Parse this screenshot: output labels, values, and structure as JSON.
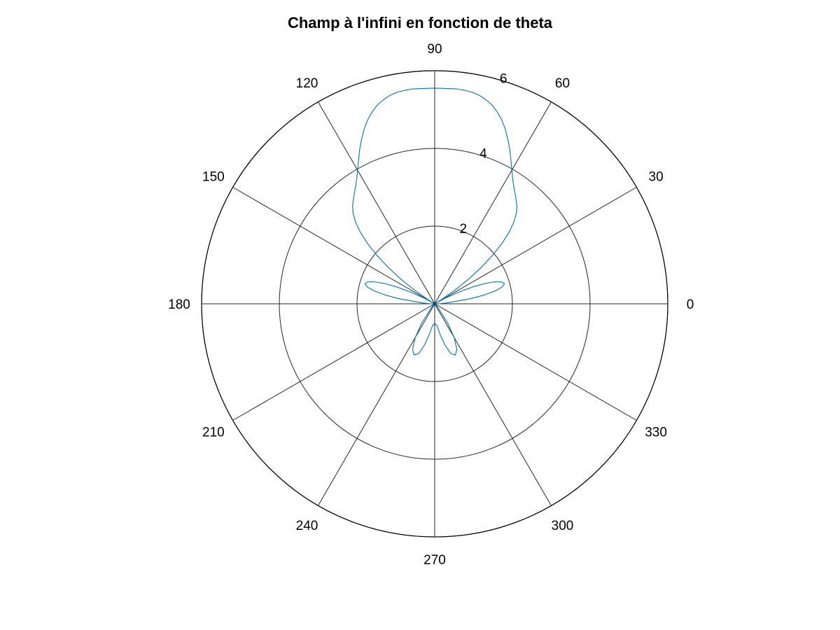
{
  "chart_data": {
    "type": "polar-line",
    "title": "Champ à l'infini en fonction de theta",
    "angle_unit": "degrees",
    "angle_ticks": [
      0,
      30,
      60,
      90,
      120,
      150,
      180,
      210,
      240,
      270,
      300,
      330
    ],
    "radial_ticks": [
      2,
      4,
      6
    ],
    "rlim": [
      0,
      6
    ],
    "grid": true,
    "series": [
      {
        "color": "#0072bd",
        "theta": [
          0,
          4,
          8,
          10,
          12,
          14,
          16,
          18,
          20,
          22,
          24,
          26,
          28,
          30,
          32,
          34,
          36,
          38,
          40,
          42,
          44,
          46,
          48,
          50,
          52,
          54,
          56,
          58,
          60,
          62,
          64,
          66,
          68,
          70,
          72,
          74,
          76,
          78,
          80,
          82,
          84,
          86,
          88,
          90,
          92,
          94,
          96,
          98,
          100,
          102,
          104,
          106,
          108,
          110,
          112,
          114,
          116,
          118,
          120,
          122,
          124,
          126,
          128,
          130,
          132,
          134,
          136,
          138,
          140,
          142,
          144,
          146,
          148,
          150,
          152,
          154,
          156,
          158,
          160,
          162,
          164,
          166,
          168,
          170,
          172,
          176,
          180,
          184,
          190,
          200,
          210,
          220,
          230,
          236,
          240,
          244,
          248,
          252,
          256,
          260,
          264,
          268,
          270,
          272,
          276,
          280,
          284,
          288,
          292,
          296,
          300,
          304,
          310,
          320,
          330,
          340,
          350,
          356,
          360
        ],
        "r": [
          0.1,
          0.3,
          0.9,
          1.28,
          1.59,
          1.79,
          1.87,
          1.82,
          1.66,
          1.4,
          1.06,
          0.68,
          0.32,
          0.05,
          0.18,
          0.61,
          1.06,
          1.52,
          1.95,
          2.34,
          2.67,
          2.94,
          3.14,
          3.29,
          3.4,
          3.52,
          3.64,
          3.79,
          3.97,
          4.18,
          4.41,
          4.63,
          4.85,
          5.04,
          5.2,
          5.33,
          5.42,
          5.49,
          5.53,
          5.55,
          5.56,
          5.55,
          5.55,
          5.55,
          5.55,
          5.55,
          5.56,
          5.55,
          5.53,
          5.49,
          5.42,
          5.33,
          5.2,
          5.04,
          4.85,
          4.63,
          4.41,
          4.18,
          3.97,
          3.79,
          3.64,
          3.52,
          3.4,
          3.29,
          3.14,
          2.94,
          2.67,
          2.34,
          1.95,
          1.52,
          1.06,
          0.61,
          0.18,
          0.05,
          0.32,
          0.68,
          1.06,
          1.4,
          1.66,
          1.82,
          1.87,
          1.79,
          1.59,
          1.28,
          0.9,
          0.3,
          0.1,
          0.05,
          0.02,
          0.02,
          0.02,
          0.05,
          0.15,
          0.6,
          1.0,
          1.3,
          1.42,
          1.35,
          1.1,
          0.8,
          0.57,
          0.52,
          0.55,
          0.52,
          0.57,
          0.8,
          1.1,
          1.35,
          1.42,
          1.3,
          1.0,
          0.6,
          0.15,
          0.05,
          0.02,
          0.02,
          0.02,
          0.05,
          0.1
        ]
      }
    ]
  }
}
